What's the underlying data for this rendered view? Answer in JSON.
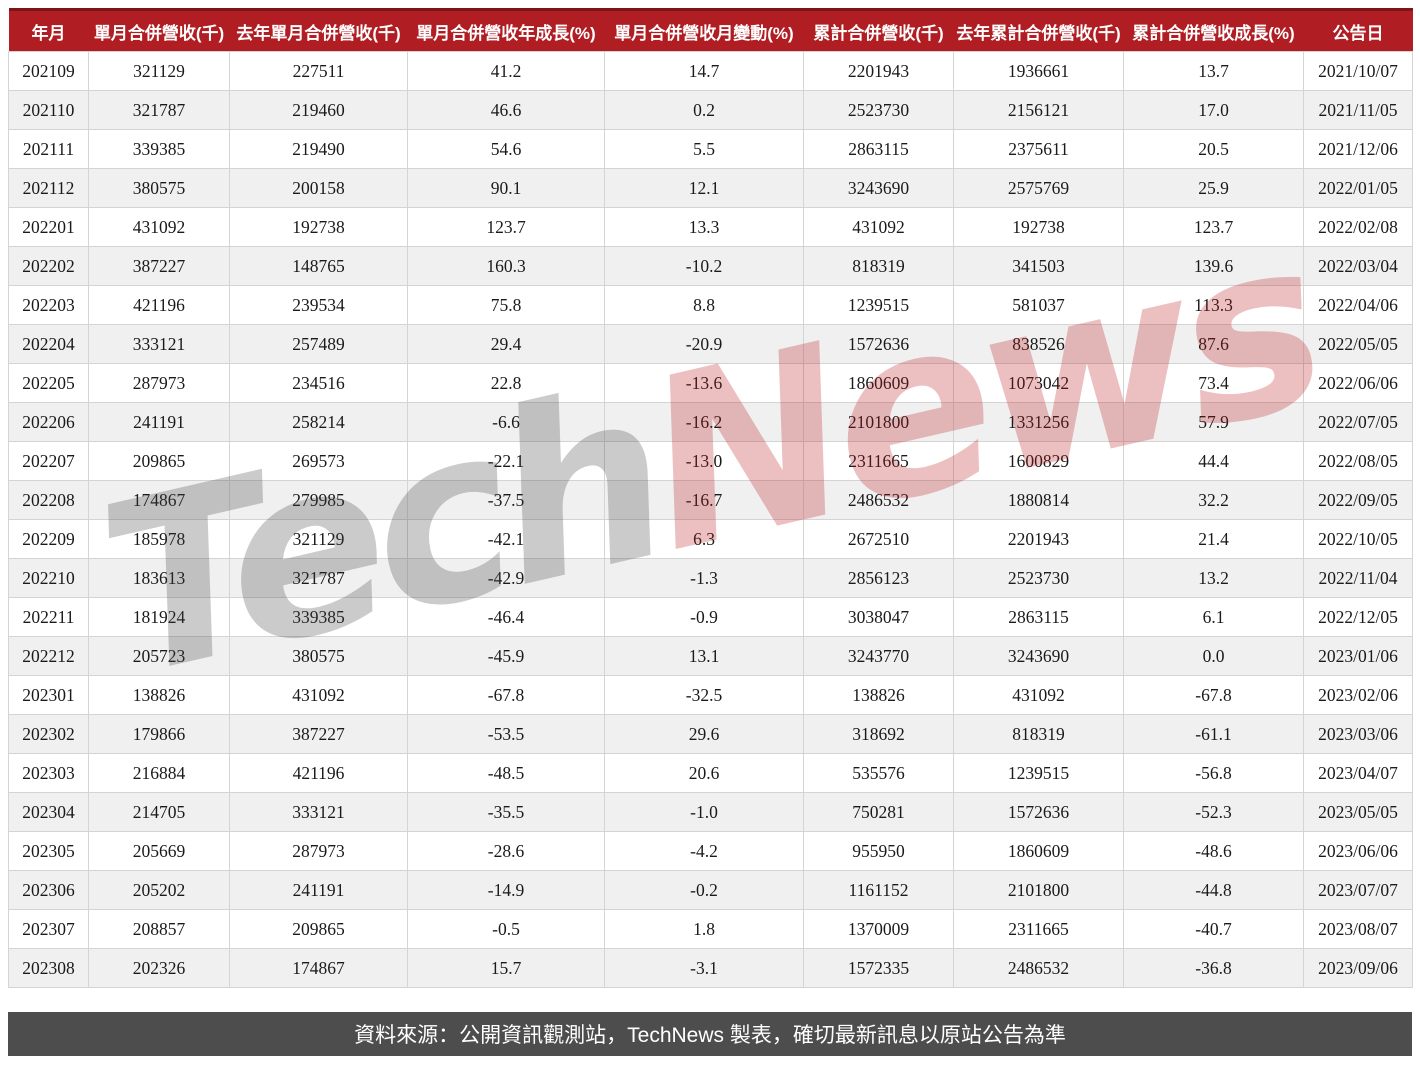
{
  "chart_data": {
    "type": "table",
    "columns": [
      "年月",
      "單月合併營收(千)",
      "去年單月合併營收(千)",
      "單月合併營收年成長(%)",
      "單月合併營收月變動(%)",
      "累計合併營收(千)",
      "去年累計合併營收(千)",
      "累計合併營收成長(%)",
      "公告日"
    ],
    "rows": [
      [
        "202109",
        "321129",
        "227511",
        "41.2",
        "14.7",
        "2201943",
        "1936661",
        "13.7",
        "2021/10/07"
      ],
      [
        "202110",
        "321787",
        "219460",
        "46.6",
        "0.2",
        "2523730",
        "2156121",
        "17.0",
        "2021/11/05"
      ],
      [
        "202111",
        "339385",
        "219490",
        "54.6",
        "5.5",
        "2863115",
        "2375611",
        "20.5",
        "2021/12/06"
      ],
      [
        "202112",
        "380575",
        "200158",
        "90.1",
        "12.1",
        "3243690",
        "2575769",
        "25.9",
        "2022/01/05"
      ],
      [
        "202201",
        "431092",
        "192738",
        "123.7",
        "13.3",
        "431092",
        "192738",
        "123.7",
        "2022/02/08"
      ],
      [
        "202202",
        "387227",
        "148765",
        "160.3",
        "-10.2",
        "818319",
        "341503",
        "139.6",
        "2022/03/04"
      ],
      [
        "202203",
        "421196",
        "239534",
        "75.8",
        "8.8",
        "1239515",
        "581037",
        "113.3",
        "2022/04/06"
      ],
      [
        "202204",
        "333121",
        "257489",
        "29.4",
        "-20.9",
        "1572636",
        "838526",
        "87.6",
        "2022/05/05"
      ],
      [
        "202205",
        "287973",
        "234516",
        "22.8",
        "-13.6",
        "1860609",
        "1073042",
        "73.4",
        "2022/06/06"
      ],
      [
        "202206",
        "241191",
        "258214",
        "-6.6",
        "-16.2",
        "2101800",
        "1331256",
        "57.9",
        "2022/07/05"
      ],
      [
        "202207",
        "209865",
        "269573",
        "-22.1",
        "-13.0",
        "2311665",
        "1600829",
        "44.4",
        "2022/08/05"
      ],
      [
        "202208",
        "174867",
        "279985",
        "-37.5",
        "-16.7",
        "2486532",
        "1880814",
        "32.2",
        "2022/09/05"
      ],
      [
        "202209",
        "185978",
        "321129",
        "-42.1",
        "6.3",
        "2672510",
        "2201943",
        "21.4",
        "2022/10/05"
      ],
      [
        "202210",
        "183613",
        "321787",
        "-42.9",
        "-1.3",
        "2856123",
        "2523730",
        "13.2",
        "2022/11/04"
      ],
      [
        "202211",
        "181924",
        "339385",
        "-46.4",
        "-0.9",
        "3038047",
        "2863115",
        "6.1",
        "2022/12/05"
      ],
      [
        "202212",
        "205723",
        "380575",
        "-45.9",
        "13.1",
        "3243770",
        "3243690",
        "0.0",
        "2023/01/06"
      ],
      [
        "202301",
        "138826",
        "431092",
        "-67.8",
        "-32.5",
        "138826",
        "431092",
        "-67.8",
        "2023/02/06"
      ],
      [
        "202302",
        "179866",
        "387227",
        "-53.5",
        "29.6",
        "318692",
        "818319",
        "-61.1",
        "2023/03/06"
      ],
      [
        "202303",
        "216884",
        "421196",
        "-48.5",
        "20.6",
        "535576",
        "1239515",
        "-56.8",
        "2023/04/07"
      ],
      [
        "202304",
        "214705",
        "333121",
        "-35.5",
        "-1.0",
        "750281",
        "1572636",
        "-52.3",
        "2023/05/05"
      ],
      [
        "202305",
        "205669",
        "287973",
        "-28.6",
        "-4.2",
        "955950",
        "1860609",
        "-48.6",
        "2023/06/06"
      ],
      [
        "202306",
        "205202",
        "241191",
        "-14.9",
        "-0.2",
        "1161152",
        "2101800",
        "-44.8",
        "2023/07/07"
      ],
      [
        "202307",
        "208857",
        "209865",
        "-0.5",
        "1.8",
        "1370009",
        "2311665",
        "-40.7",
        "2023/08/07"
      ],
      [
        "202308",
        "202326",
        "174867",
        "15.7",
        "-3.1",
        "1572335",
        "2486532",
        "-36.8",
        "2023/09/06"
      ]
    ],
    "layout_hints": {
      "striped": true,
      "header_position": "top",
      "grid": true
    }
  },
  "watermark": {
    "tech": "Tech",
    "news": "News"
  },
  "footer": {
    "source_note": "資料來源：公開資訊觀測站，TechNews 製表，確切最新訊息以原站公告為準"
  },
  "colors": {
    "header_bg": "#b01e24",
    "header_top_border": "#7c1418",
    "header_text": "#ffffff",
    "row_bg": "#ffffff",
    "row_alt_bg": "#f0f0f0",
    "cell_border": "#d4d4d4",
    "footer_bg": "#4d4d4d",
    "footer_text": "#ffffff",
    "watermark_gray": "#464646",
    "watermark_red": "#ba1c22"
  }
}
